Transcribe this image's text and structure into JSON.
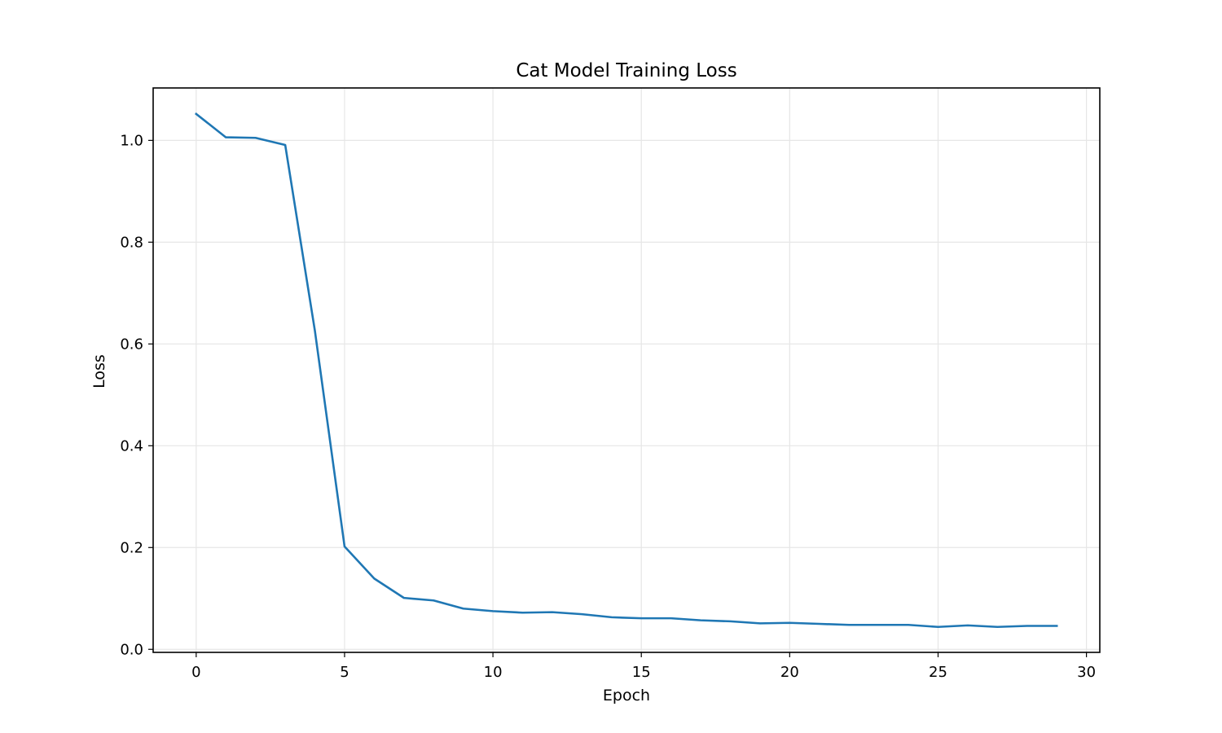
{
  "chart_data": {
    "type": "line",
    "title": "Cat Model Training Loss",
    "xlabel": "Epoch",
    "ylabel": "Loss",
    "xlim": [
      -1.45,
      30.45
    ],
    "ylim": [
      -0.006,
      1.103
    ],
    "x_ticks": [
      0,
      5,
      10,
      15,
      20,
      25,
      30
    ],
    "y_ticks": [
      0.0,
      0.2,
      0.4,
      0.6,
      0.8,
      1.0
    ],
    "y_tick_labels": [
      "0.0",
      "0.2",
      "0.4",
      "0.6",
      "0.8",
      "1.0"
    ],
    "grid": true,
    "legend": false,
    "series": [
      {
        "color": "#1f77b4",
        "x": [
          0,
          1,
          2,
          3,
          4,
          5,
          6,
          7,
          8,
          9,
          10,
          11,
          12,
          13,
          14,
          15,
          16,
          17,
          18,
          19,
          20,
          21,
          22,
          23,
          24,
          25,
          26,
          27,
          28,
          29
        ],
        "values": [
          1.052,
          1.006,
          1.005,
          0.991,
          0.626,
          0.202,
          0.139,
          0.101,
          0.096,
          0.08,
          0.075,
          0.072,
          0.073,
          0.069,
          0.063,
          0.061,
          0.061,
          0.057,
          0.055,
          0.051,
          0.052,
          0.05,
          0.048,
          0.048,
          0.048,
          0.044,
          0.047,
          0.044,
          0.046,
          0.046
        ]
      }
    ]
  }
}
